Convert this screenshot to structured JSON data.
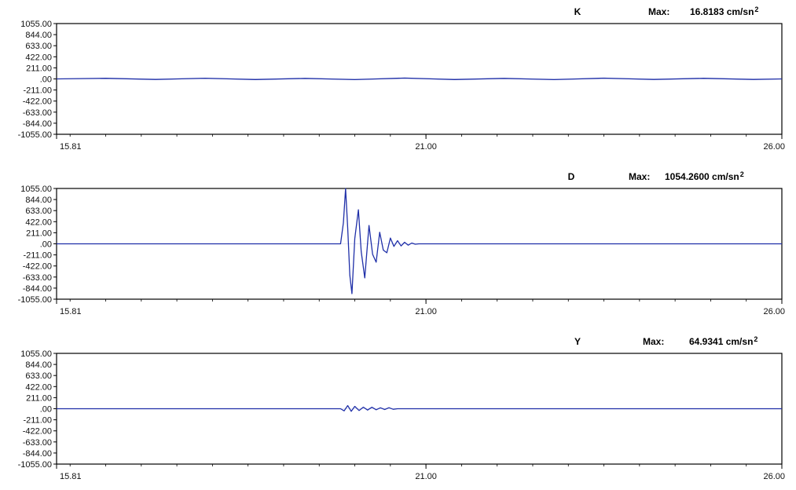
{
  "chart_data": [
    {
      "type": "line",
      "channel": "K",
      "max_label": "Max:",
      "max_value": "16.8183",
      "unit": "cm/sn",
      "unit_exp": "2",
      "ylim": [
        -1055.0,
        1055.0
      ],
      "xlim": [
        15.81,
        26.0
      ],
      "y_ticks": [
        "1055.00",
        "844.00",
        "633.00",
        "422.00",
        "211.00",
        ".00",
        "-211.00",
        "-422.00",
        "-633.00",
        "-844.00",
        "-1055.00"
      ],
      "x_ticks": [
        "15.81",
        "21.00",
        "26.00"
      ],
      "grid": false,
      "color": "#1f2fa8",
      "series": [
        {
          "x": [
            15.81,
            16.5,
            17.2,
            17.9,
            18.6,
            19.3,
            20.0,
            20.7,
            21.4,
            22.1,
            22.8,
            23.5,
            24.2,
            24.9,
            25.6,
            26.0
          ],
          "y": [
            0,
            12,
            -10,
            14,
            -12,
            10,
            -14,
            16,
            -12,
            11,
            -13,
            15,
            -10,
            12,
            -11,
            0
          ]
        }
      ]
    },
    {
      "type": "line",
      "channel": "D",
      "max_label": "Max:",
      "max_value": "1054.2600",
      "unit": "cm/sn",
      "unit_exp": "2",
      "ylim": [
        -1055.0,
        1055.0
      ],
      "xlim": [
        15.81,
        26.0
      ],
      "y_ticks": [
        "1055.00",
        "844.00",
        "633.00",
        "422.00",
        "211.00",
        ".00",
        "-211.00",
        "-422.00",
        "-633.00",
        "-844.00",
        "-1055.00"
      ],
      "x_ticks": [
        "15.81",
        "21.00",
        "26.00"
      ],
      "grid": false,
      "color": "#1f2fa8",
      "series": [
        {
          "x": [
            15.81,
            19.8,
            19.84,
            19.87,
            19.9,
            19.93,
            19.96,
            20.0,
            20.05,
            20.09,
            20.14,
            20.2,
            20.25,
            20.3,
            20.35,
            20.4,
            20.45,
            20.5,
            20.55,
            20.6,
            20.65,
            20.7,
            20.75,
            20.8,
            20.85,
            20.9,
            26.0
          ],
          "y": [
            0,
            0,
            400,
            1054,
            300,
            -600,
            -950,
            100,
            650,
            -150,
            -650,
            350,
            -200,
            -350,
            220,
            -120,
            -170,
            110,
            -50,
            60,
            -40,
            30,
            -25,
            15,
            -8,
            0,
            0
          ]
        }
      ]
    },
    {
      "type": "line",
      "channel": "Y",
      "max_label": "Max:",
      "max_value": "64.9341",
      "unit": "cm/sn",
      "unit_exp": "2",
      "ylim": [
        -1055.0,
        1055.0
      ],
      "xlim": [
        15.81,
        26.0
      ],
      "y_ticks": [
        "1055.00",
        "844.00",
        "633.00",
        "422.00",
        "211.00",
        ".00",
        "-211.00",
        "-422.00",
        "-633.00",
        "-844.00",
        "-1055.00"
      ],
      "x_ticks": [
        "15.81",
        "21.00",
        "26.00"
      ],
      "grid": false,
      "color": "#1f2fa8",
      "series": [
        {
          "x": [
            15.81,
            19.8,
            19.85,
            19.9,
            19.95,
            20.0,
            20.06,
            20.12,
            20.18,
            20.24,
            20.3,
            20.36,
            20.42,
            20.48,
            20.54,
            20.6,
            26.0
          ],
          "y": [
            0,
            0,
            -40,
            60,
            -50,
            45,
            -35,
            30,
            -25,
            28,
            -20,
            18,
            -15,
            20,
            -10,
            0,
            0
          ]
        }
      ]
    }
  ]
}
